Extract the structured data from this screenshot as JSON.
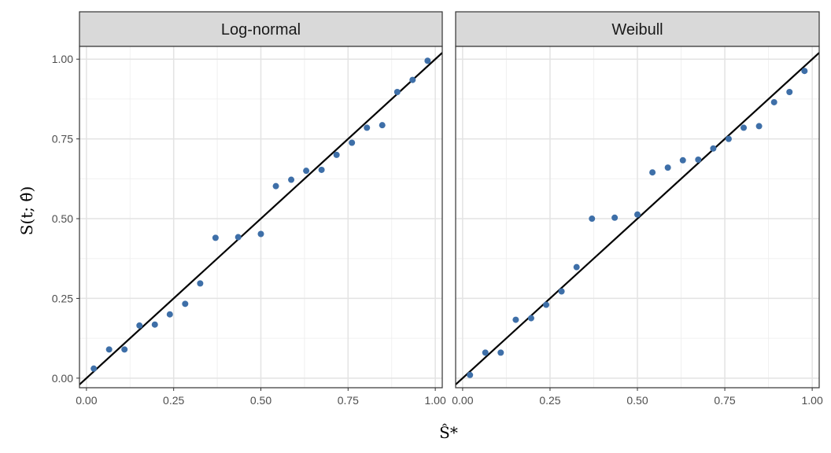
{
  "chart_data": {
    "type": "scatter",
    "facet_layout": "1 row x 2 columns",
    "xlabel": "Ŝ*",
    "ylabel": "S(t; θ̂)",
    "xlim": [
      -0.02,
      1.02
    ],
    "ylim": [
      -0.03,
      1.04
    ],
    "x_ticks": [
      0,
      0.25,
      0.5,
      0.75,
      1
    ],
    "x_tick_labels": [
      "0.00",
      "0.25",
      "0.50",
      "0.75",
      "1.00"
    ],
    "y_ticks": [
      0,
      0.25,
      0.5,
      0.75,
      1
    ],
    "y_tick_labels": [
      "0.00",
      "0.25",
      "0.50",
      "0.75",
      "1.00"
    ],
    "grid": true,
    "reference_line": {
      "slope": 1,
      "intercept": 0,
      "color": "#000000"
    },
    "point_color": "#3E6FA8",
    "facets": [
      {
        "name": "Log-normal",
        "x": [
          0.021,
          0.065,
          0.109,
          0.152,
          0.196,
          0.239,
          0.283,
          0.326,
          0.37,
          0.435,
          0.5,
          0.543,
          0.587,
          0.63,
          0.674,
          0.717,
          0.761,
          0.804,
          0.848,
          0.891,
          0.935,
          0.978
        ],
        "y": [
          0.03,
          0.09,
          0.09,
          0.165,
          0.168,
          0.2,
          0.233,
          0.297,
          0.44,
          0.442,
          0.452,
          0.602,
          0.622,
          0.65,
          0.653,
          0.7,
          0.738,
          0.785,
          0.793,
          0.897,
          0.935,
          0.995
        ]
      },
      {
        "name": "Weibull",
        "x": [
          0.021,
          0.065,
          0.109,
          0.152,
          0.196,
          0.239,
          0.283,
          0.326,
          0.37,
          0.435,
          0.5,
          0.543,
          0.587,
          0.63,
          0.674,
          0.717,
          0.761,
          0.804,
          0.848,
          0.891,
          0.935,
          0.978
        ],
        "y": [
          0.01,
          0.08,
          0.08,
          0.183,
          0.188,
          0.23,
          0.272,
          0.348,
          0.5,
          0.503,
          0.513,
          0.645,
          0.66,
          0.683,
          0.685,
          0.72,
          0.75,
          0.785,
          0.79,
          0.865,
          0.897,
          0.963
        ]
      }
    ]
  }
}
